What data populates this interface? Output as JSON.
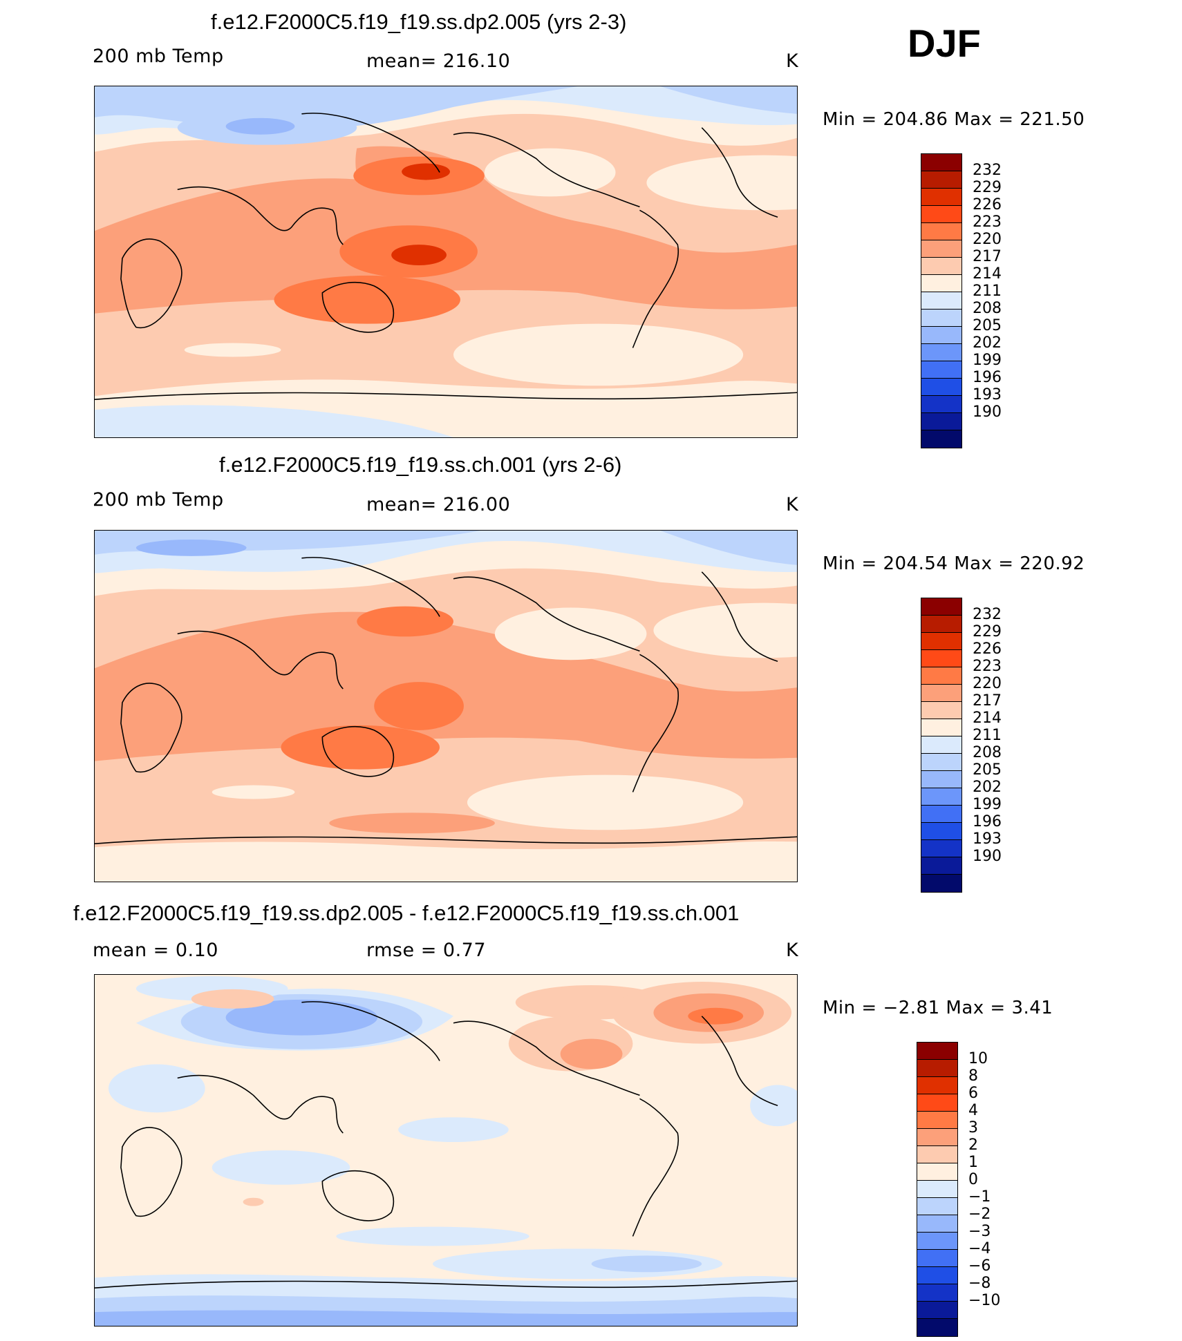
{
  "season": "DJF",
  "panels": [
    {
      "title": "f.e12.F2000C5.f19_f19.ss.dp2.005 (yrs 2-3)",
      "left_label": "200 mb Temp",
      "center_label": "mean=  216.10",
      "units": "K",
      "stats": "Min  =  204.86  Max  =  221.50",
      "colorbar_labels": [
        "232",
        "229",
        "226",
        "223",
        "220",
        "217",
        "214",
        "211",
        "208",
        "205",
        "202",
        "199",
        "196",
        "193",
        "190"
      ],
      "colorbar_colors": [
        "#8b0000",
        "#b71c00",
        "#e03000",
        "#ff4a17",
        "#ff7a45",
        "#fca07a",
        "#fdcbb0",
        "#fff0e0",
        "#dbeafc",
        "#bcd4fc",
        "#98b8fb",
        "#6c96fa",
        "#4170f5",
        "#1f4fe6",
        "#1433c7",
        "#0a1a99",
        "#020a6b"
      ],
      "base_color": "#fdcbb0"
    },
    {
      "title": "f.e12.F2000C5.f19_f19.ss.ch.001 (yrs 2-6)",
      "left_label": "200 mb Temp",
      "center_label": "mean=  216.00",
      "units": "K",
      "stats": "Min  =  204.54  Max  =  220.92",
      "colorbar_labels": [
        "232",
        "229",
        "226",
        "223",
        "220",
        "217",
        "214",
        "211",
        "208",
        "205",
        "202",
        "199",
        "196",
        "193",
        "190"
      ],
      "colorbar_colors": [
        "#8b0000",
        "#b71c00",
        "#e03000",
        "#ff4a17",
        "#ff7a45",
        "#fca07a",
        "#fdcbb0",
        "#fff0e0",
        "#dbeafc",
        "#bcd4fc",
        "#98b8fb",
        "#6c96fa",
        "#4170f5",
        "#1f4fe6",
        "#1433c7",
        "#0a1a99",
        "#020a6b"
      ],
      "base_color": "#fdcbb0"
    },
    {
      "title": "f.e12.F2000C5.f19_f19.ss.dp2.005 - f.e12.F2000C5.f19_f19.ss.ch.001",
      "left_label": "mean =      0.10",
      "center_label": "rmse =      0.77",
      "units": "K",
      "stats": "Min  =     −2.81  Max  =      3.41",
      "colorbar_labels": [
        "10",
        "8",
        "6",
        "4",
        "3",
        "2",
        "1",
        "0",
        "−1",
        "−2",
        "−3",
        "−4",
        "−6",
        "−8",
        "−10"
      ],
      "colorbar_colors": [
        "#8b0000",
        "#b71c00",
        "#e03000",
        "#ff4a17",
        "#ff7a45",
        "#fca07a",
        "#fdcbb0",
        "#fff0e0",
        "#dbeafc",
        "#bcd4fc",
        "#98b8fb",
        "#6c96fa",
        "#4170f5",
        "#1f4fe6",
        "#1433c7",
        "#0a1a99",
        "#020a6b"
      ],
      "base_color": "#fff0e0"
    }
  ]
}
